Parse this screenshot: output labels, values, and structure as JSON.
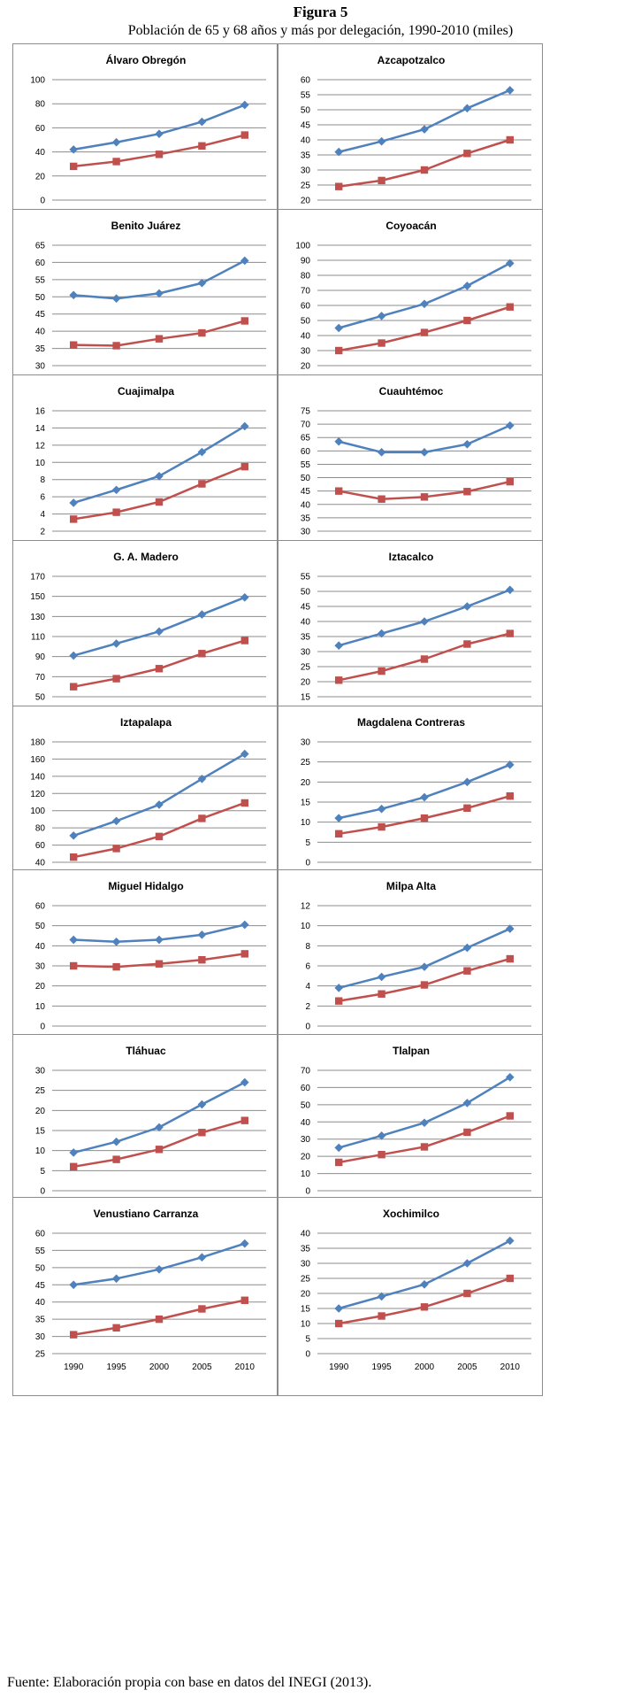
{
  "figure": {
    "title": "Figura 5",
    "subtitle": "Población de 65 y 68 años y más por delegación, 1990-2010 (miles)",
    "source": "Fuente: Elaboración propia con base en datos del INEGI (2013)."
  },
  "colors": {
    "series_a": "#4f81bd",
    "series_b": "#c0504d",
    "grid": "#8c8c8c"
  },
  "chart_data": [
    {
      "type": "line",
      "title": "Álvaro Obregón",
      "categories": [
        "1990",
        "1995",
        "2000",
        "2005",
        "2010"
      ],
      "ylim": [
        0,
        100
      ],
      "yticks": [
        0,
        20,
        40,
        60,
        80,
        100
      ],
      "grid": true,
      "series": [
        {
          "values": [
            42,
            48,
            55,
            65,
            79
          ]
        },
        {
          "values": [
            28,
            32,
            38,
            45,
            54
          ]
        }
      ]
    },
    {
      "type": "line",
      "title": "Azcapotzalco",
      "categories": [
        "1990",
        "1995",
        "2000",
        "2005",
        "2010"
      ],
      "ylim": [
        20,
        60
      ],
      "yticks": [
        20,
        25,
        30,
        35,
        40,
        45,
        50,
        55,
        60
      ],
      "grid": true,
      "series": [
        {
          "values": [
            36,
            39.5,
            43.5,
            50.5,
            56.5
          ]
        },
        {
          "values": [
            24.5,
            26.5,
            30,
            35.5,
            40
          ]
        }
      ]
    },
    {
      "type": "line",
      "title": "Benito Juárez",
      "categories": [
        "1990",
        "1995",
        "2000",
        "2005",
        "2010"
      ],
      "ylim": [
        30,
        65
      ],
      "yticks": [
        30,
        35,
        40,
        45,
        50,
        55,
        60,
        65
      ],
      "grid": true,
      "series": [
        {
          "values": [
            50.5,
            49.5,
            51,
            54,
            60.5
          ]
        },
        {
          "values": [
            36,
            35.8,
            37.8,
            39.5,
            43
          ]
        }
      ]
    },
    {
      "type": "line",
      "title": "Coyoacán",
      "categories": [
        "1990",
        "1995",
        "2000",
        "2005",
        "2010"
      ],
      "ylim": [
        20,
        100
      ],
      "yticks": [
        20,
        30,
        40,
        50,
        60,
        70,
        80,
        90,
        100
      ],
      "grid": true,
      "series": [
        {
          "values": [
            45,
            53,
            61,
            73,
            88
          ]
        },
        {
          "values": [
            30,
            35,
            42,
            50,
            59
          ]
        }
      ]
    },
    {
      "type": "line",
      "title": "Cuajimalpa",
      "categories": [
        "1990",
        "1995",
        "2000",
        "2005",
        "2010"
      ],
      "ylim": [
        2,
        16
      ],
      "yticks": [
        2,
        4,
        6,
        8,
        10,
        12,
        14,
        16
      ],
      "grid": true,
      "series": [
        {
          "values": [
            5.3,
            6.8,
            8.4,
            11.2,
            14.2
          ]
        },
        {
          "values": [
            3.4,
            4.2,
            5.4,
            7.5,
            9.5
          ]
        }
      ]
    },
    {
      "type": "line",
      "title": "Cuauhtémoc",
      "categories": [
        "1990",
        "1995",
        "2000",
        "2005",
        "2010"
      ],
      "ylim": [
        30,
        75
      ],
      "yticks": [
        30,
        35,
        40,
        45,
        50,
        55,
        60,
        65,
        70,
        75
      ],
      "grid": true,
      "series": [
        {
          "values": [
            63.5,
            59.5,
            59.5,
            62.5,
            69.5
          ]
        },
        {
          "values": [
            45,
            42,
            42.8,
            44.8,
            48.5
          ]
        }
      ]
    },
    {
      "type": "line",
      "title": "G. A. Madero",
      "categories": [
        "1990",
        "1995",
        "2000",
        "2005",
        "2010"
      ],
      "ylim": [
        50,
        170
      ],
      "yticks": [
        50,
        70,
        90,
        110,
        130,
        150,
        170
      ],
      "grid": true,
      "series": [
        {
          "values": [
            91,
            103,
            115,
            132,
            149
          ]
        },
        {
          "values": [
            60,
            68,
            78,
            93,
            106
          ]
        }
      ]
    },
    {
      "type": "line",
      "title": "Iztacalco",
      "categories": [
        "1990",
        "1995",
        "2000",
        "2005",
        "2010"
      ],
      "ylim": [
        15,
        55
      ],
      "yticks": [
        15,
        20,
        25,
        30,
        35,
        40,
        45,
        50,
        55
      ],
      "grid": true,
      "series": [
        {
          "values": [
            32,
            36,
            40,
            45,
            50.5
          ]
        },
        {
          "values": [
            20.5,
            23.5,
            27.5,
            32.5,
            36
          ]
        }
      ]
    },
    {
      "type": "line",
      "title": "Iztapalapa",
      "categories": [
        "1990",
        "1995",
        "2000",
        "2005",
        "2010"
      ],
      "ylim": [
        40,
        180
      ],
      "yticks": [
        40,
        60,
        80,
        100,
        120,
        140,
        160,
        180
      ],
      "grid": true,
      "series": [
        {
          "values": [
            71,
            88,
            107,
            137,
            166
          ]
        },
        {
          "values": [
            46,
            56,
            70,
            91,
            109
          ]
        }
      ]
    },
    {
      "type": "line",
      "title": "Magdalena Contreras",
      "categories": [
        "1990",
        "1995",
        "2000",
        "2005",
        "2010"
      ],
      "ylim": [
        0,
        30
      ],
      "yticks": [
        0,
        5,
        10,
        15,
        20,
        25,
        30
      ],
      "grid": true,
      "series": [
        {
          "values": [
            11,
            13.3,
            16.2,
            20,
            24.3
          ]
        },
        {
          "values": [
            7.1,
            8.8,
            11,
            13.5,
            16.5
          ]
        }
      ]
    },
    {
      "type": "line",
      "title": "Miguel Hidalgo",
      "categories": [
        "1990",
        "1995",
        "2000",
        "2005",
        "2010"
      ],
      "ylim": [
        0,
        60
      ],
      "yticks": [
        0,
        10,
        20,
        30,
        40,
        50,
        60
      ],
      "grid": true,
      "series": [
        {
          "values": [
            43,
            42,
            43,
            45.5,
            50.5
          ]
        },
        {
          "values": [
            30,
            29.5,
            31,
            33,
            36
          ]
        }
      ]
    },
    {
      "type": "line",
      "title": "Milpa Alta",
      "categories": [
        "1990",
        "1995",
        "2000",
        "2005",
        "2010"
      ],
      "ylim": [
        0,
        12
      ],
      "yticks": [
        0,
        2,
        4,
        6,
        8,
        10,
        12
      ],
      "grid": true,
      "series": [
        {
          "values": [
            3.8,
            4.9,
            5.9,
            7.8,
            9.7
          ]
        },
        {
          "values": [
            2.5,
            3.2,
            4.1,
            5.5,
            6.7
          ]
        }
      ]
    },
    {
      "type": "line",
      "title": "Tláhuac",
      "categories": [
        "1990",
        "1995",
        "2000",
        "2005",
        "2010"
      ],
      "ylim": [
        0,
        30
      ],
      "yticks": [
        0,
        5,
        10,
        15,
        20,
        25,
        30
      ],
      "grid": true,
      "series": [
        {
          "values": [
            9.5,
            12.2,
            15.8,
            21.5,
            27
          ]
        },
        {
          "values": [
            6,
            7.8,
            10.3,
            14.5,
            17.5
          ]
        }
      ]
    },
    {
      "type": "line",
      "title": "Tlalpan",
      "categories": [
        "1990",
        "1995",
        "2000",
        "2005",
        "2010"
      ],
      "ylim": [
        0,
        70
      ],
      "yticks": [
        0,
        10,
        20,
        30,
        40,
        50,
        60,
        70
      ],
      "grid": true,
      "series": [
        {
          "values": [
            25,
            32,
            39.5,
            51,
            66
          ]
        },
        {
          "values": [
            16.5,
            21,
            25.5,
            34,
            43.5
          ]
        }
      ]
    },
    {
      "type": "line",
      "title": "Venustiano Carranza",
      "categories": [
        "1990",
        "1995",
        "2000",
        "2005",
        "2010"
      ],
      "ylim": [
        25,
        60
      ],
      "yticks": [
        25,
        30,
        35,
        40,
        45,
        50,
        55,
        60
      ],
      "grid": true,
      "series": [
        {
          "values": [
            45,
            46.8,
            49.5,
            53,
            57
          ]
        },
        {
          "values": [
            30.5,
            32.5,
            35,
            38,
            40.5
          ]
        }
      ]
    },
    {
      "type": "line",
      "title": "Xochimilco",
      "categories": [
        "1990",
        "1995",
        "2000",
        "2005",
        "2010"
      ],
      "ylim": [
        0,
        40
      ],
      "yticks": [
        0,
        5,
        10,
        15,
        20,
        25,
        30,
        35,
        40
      ],
      "grid": true,
      "series": [
        {
          "values": [
            15,
            19,
            23,
            30,
            37.5
          ]
        },
        {
          "values": [
            10,
            12.5,
            15.5,
            20,
            25
          ]
        }
      ]
    }
  ]
}
